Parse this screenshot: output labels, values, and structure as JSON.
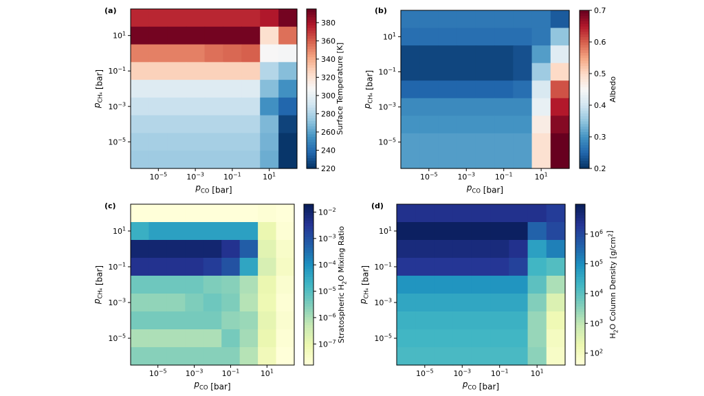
{
  "chart_data": [
    {
      "type": "heatmap",
      "panel_label": "(a)",
      "xlabel": "p_CO [bar]",
      "ylabel": "p_CH4 [bar]",
      "x_ticks": [
        "10^-5",
        "10^-3",
        "10^-1",
        "10^1"
      ],
      "y_ticks": [
        "10^1",
        "10^-1",
        "10^-3",
        "10^-5"
      ],
      "colorbar": {
        "label": "Surface Temperature [K]",
        "colormap": "RdBu_r",
        "range": [
          220,
          395
        ],
        "ticks": [
          "380",
          "360",
          "340",
          "320",
          "300",
          "280",
          "260",
          "240",
          "220"
        ],
        "tick_values": [
          380,
          360,
          340,
          320,
          300,
          280,
          260,
          240,
          220
        ]
      },
      "x_edges": [
        -6.5,
        0.5,
        1.5,
        2.5
      ],
      "y_edges": [
        2.5,
        1.5,
        0.5,
        -0.5,
        -1.5,
        -2.5,
        -3.5,
        -4.5,
        -5.5,
        -6.5
      ],
      "x_column_edges": [
        -6.5,
        -5.5,
        -4.5,
        -3.5,
        -2.5,
        -1.5,
        -0.5,
        0.5,
        1.5,
        2.5
      ],
      "values": [
        [
          374,
          374,
          374,
          374,
          374,
          374,
          374,
          378,
          392
        ],
        [
          392,
          392,
          392,
          392,
          392,
          392,
          392,
          322,
          356
        ],
        [
          352,
          352,
          352,
          352,
          356,
          358,
          360,
          308,
          306
        ],
        [
          328,
          328,
          328,
          328,
          328,
          328,
          328,
          282,
          270
        ],
        [
          296,
          296,
          296,
          296,
          296,
          296,
          296,
          270,
          254
        ],
        [
          288,
          288,
          288,
          288,
          288,
          288,
          288,
          254,
          238
        ],
        [
          282,
          282,
          282,
          282,
          282,
          282,
          282,
          268,
          226
        ],
        [
          278,
          278,
          278,
          278,
          278,
          278,
          278,
          266,
          222
        ],
        [
          276,
          276,
          276,
          276,
          276,
          276,
          276,
          264,
          222
        ]
      ]
    },
    {
      "type": "heatmap",
      "panel_label": "(b)",
      "xlabel": "p_CO [bar]",
      "ylabel": "p_CH4 [bar]",
      "x_ticks": [
        "10^-5",
        "10^-3",
        "10^-1",
        "10^1"
      ],
      "y_ticks": [
        "10^1",
        "10^-1",
        "10^-3",
        "10^-5"
      ],
      "colorbar": {
        "label": "Albedo",
        "colormap": "RdBu_r",
        "range": [
          0.2,
          0.7
        ],
        "ticks": [
          "0.7",
          "0.6",
          "0.5",
          "0.4",
          "0.3",
          "0.2"
        ],
        "tick_values": [
          0.7,
          0.6,
          0.5,
          0.4,
          0.3,
          0.2
        ]
      },
      "x_edges": [
        -6.5,
        0.5,
        1.5,
        2.5
      ],
      "y_edges": [
        2.5,
        1.5,
        0.5,
        -0.5,
        -1.5,
        -2.5,
        -3.5,
        -4.5,
        -5.5,
        -6.5
      ],
      "x_column_edges": [
        -6.5,
        -5.5,
        -4.5,
        -3.5,
        -2.5,
        -1.5,
        -0.5,
        0.5,
        1.5,
        2.5
      ],
      "values": [
        [
          0.27,
          0.27,
          0.27,
          0.27,
          0.27,
          0.27,
          0.27,
          0.27,
          0.24
        ],
        [
          0.26,
          0.26,
          0.26,
          0.26,
          0.26,
          0.26,
          0.26,
          0.27,
          0.35
        ],
        [
          0.22,
          0.22,
          0.22,
          0.22,
          0.22,
          0.22,
          0.23,
          0.31,
          0.42
        ],
        [
          0.22,
          0.22,
          0.22,
          0.22,
          0.22,
          0.22,
          0.23,
          0.36,
          0.5
        ],
        [
          0.25,
          0.25,
          0.25,
          0.25,
          0.25,
          0.25,
          0.26,
          0.41,
          0.61
        ],
        [
          0.29,
          0.29,
          0.29,
          0.29,
          0.29,
          0.29,
          0.29,
          0.43,
          0.65
        ],
        [
          0.3,
          0.3,
          0.3,
          0.3,
          0.3,
          0.3,
          0.3,
          0.47,
          0.68
        ],
        [
          0.31,
          0.31,
          0.31,
          0.31,
          0.31,
          0.31,
          0.31,
          0.49,
          0.7
        ],
        [
          0.31,
          0.31,
          0.31,
          0.31,
          0.31,
          0.31,
          0.31,
          0.49,
          0.7
        ]
      ]
    },
    {
      "type": "heatmap",
      "panel_label": "(c)",
      "xlabel": "p_CO [bar]",
      "ylabel": "p_CH4 [bar]",
      "x_ticks": [
        "10^-5",
        "10^-3",
        "10^-1",
        "10^1"
      ],
      "y_ticks": [
        "10^1",
        "10^-1",
        "10^-3",
        "10^-5"
      ],
      "colorbar": {
        "label": "Stratospheric H2O Mixing Ratio",
        "colormap": "YlGnBu",
        "log": true,
        "range": [
          -7.8,
          -1.7
        ],
        "ticks": [
          "10^-2",
          "10^-3",
          "10^-4",
          "10^-5",
          "10^-6",
          "10^-7"
        ],
        "tick_values": [
          -2,
          -3,
          -4,
          -5,
          -6,
          -7
        ]
      },
      "x_edges": [
        -6.5,
        0.5,
        1.5,
        2.5
      ],
      "y_edges": [
        2.5,
        1.5,
        0.5,
        -0.5,
        -1.5,
        -2.5,
        -3.5,
        -4.5,
        -5.5,
        -6.5
      ],
      "x_column_edges": [
        -6.5,
        -5.5,
        -4.5,
        -3.5,
        -2.5,
        -1.5,
        -0.5,
        0.5,
        1.5,
        2.5
      ],
      "values": [
        [
          -7.8,
          -7.8,
          -7.8,
          -7.8,
          -7.8,
          -7.8,
          -7.8,
          -7.7,
          -7.8
        ],
        [
          -4.6,
          -4.3,
          -4.3,
          -4.3,
          -4.3,
          -4.3,
          -4.3,
          -7.0,
          -7.7
        ],
        [
          -2.0,
          -2.0,
          -2.0,
          -2.0,
          -2.0,
          -2.4,
          -3.2,
          -6.8,
          -7.5
        ],
        [
          -2.4,
          -2.4,
          -2.4,
          -2.4,
          -2.6,
          -3.0,
          -4.4,
          -6.6,
          -7.4
        ],
        [
          -5.3,
          -5.3,
          -5.3,
          -5.3,
          -5.5,
          -5.6,
          -6.0,
          -7.0,
          -7.6
        ],
        [
          -5.7,
          -5.7,
          -5.7,
          -5.5,
          -5.3,
          -5.5,
          -6.1,
          -7.1,
          -7.7
        ],
        [
          -5.4,
          -5.4,
          -5.4,
          -5.4,
          -5.4,
          -5.7,
          -5.8,
          -6.9,
          -7.6
        ],
        [
          -6.0,
          -6.0,
          -6.0,
          -6.0,
          -6.0,
          -5.4,
          -5.9,
          -7.0,
          -7.7
        ],
        [
          -5.6,
          -5.6,
          -5.6,
          -5.6,
          -5.6,
          -5.6,
          -6.1,
          -7.2,
          -7.8
        ]
      ]
    },
    {
      "type": "heatmap",
      "panel_label": "(d)",
      "xlabel": "p_CO [bar]",
      "ylabel": "p_CH4 [bar]",
      "x_ticks": [
        "10^-5",
        "10^-3",
        "10^-1",
        "10^1"
      ],
      "y_ticks": [
        "10^1",
        "10^-1",
        "10^-3",
        "10^-5"
      ],
      "colorbar": {
        "label": "H2O Column Density [g/cm^2]",
        "colormap": "YlGnBu",
        "log": true,
        "range": [
          1.6,
          7.0
        ],
        "ticks": [
          "10^6",
          "10^5",
          "10^4",
          "10^3",
          "10^2"
        ],
        "tick_values": [
          6,
          5,
          4,
          3,
          2
        ]
      },
      "x_edges": [
        -6.5,
        0.5,
        1.5,
        2.5
      ],
      "y_edges": [
        2.5,
        1.5,
        0.5,
        -0.5,
        -1.5,
        -2.5,
        -3.5,
        -4.5,
        -5.5,
        -6.5
      ],
      "x_column_edges": [
        -6.5,
        -5.5,
        -4.5,
        -3.5,
        -2.5,
        -1.5,
        -0.5,
        0.5,
        1.5,
        2.5
      ],
      "values": [
        [
          6.4,
          6.4,
          6.4,
          6.4,
          6.4,
          6.4,
          6.4,
          6.4,
          6.2
        ],
        [
          6.9,
          6.9,
          6.9,
          6.9,
          6.9,
          6.9,
          6.9,
          5.6,
          6.0
        ],
        [
          6.6,
          6.6,
          6.6,
          6.6,
          6.6,
          6.6,
          6.4,
          4.7,
          5.2
        ],
        [
          6.3,
          6.3,
          6.3,
          6.3,
          6.3,
          6.3,
          6.1,
          4.3,
          4.1
        ],
        [
          4.9,
          4.9,
          4.9,
          4.9,
          4.9,
          4.9,
          4.9,
          4.0,
          3.2
        ],
        [
          4.6,
          4.6,
          4.6,
          4.6,
          4.6,
          4.6,
          4.6,
          3.6,
          2.6
        ],
        [
          4.4,
          4.4,
          4.4,
          4.4,
          4.4,
          4.4,
          4.4,
          3.4,
          2.2
        ],
        [
          4.3,
          4.3,
          4.3,
          4.3,
          4.3,
          4.3,
          4.3,
          3.4,
          2.0
        ],
        [
          4.2,
          4.2,
          4.2,
          4.2,
          4.2,
          4.2,
          4.2,
          3.5,
          1.9
        ]
      ]
    }
  ]
}
